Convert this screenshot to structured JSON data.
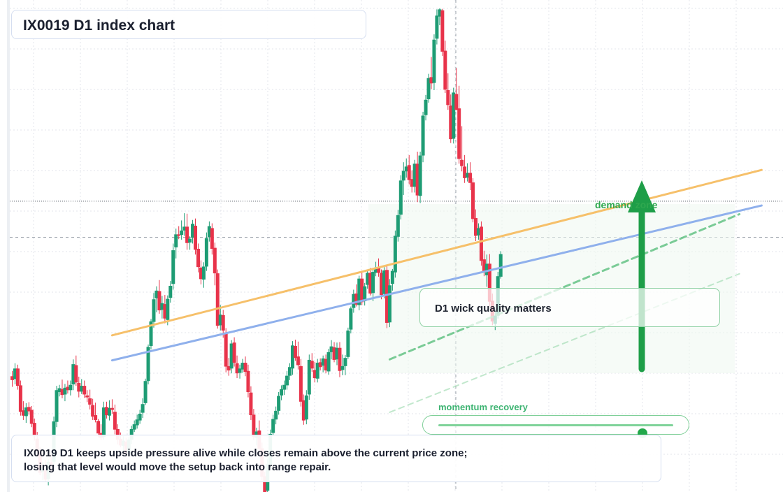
{
  "title": "IX0019 D1 index chart",
  "annotations": {
    "demand_label": "demand zone",
    "wick_note": "D1 wick quality matters",
    "momentum_label": "momentum recovery",
    "momentum_level": 0.87
  },
  "note": {
    "line1": "IX0019 D1 keeps upside pressure alive while closes remain above the current price zone;",
    "line2": "losing that level would move the setup back into range repair."
  },
  "colors": {
    "up": "#1e9c74",
    "down": "#e8334a",
    "orange_line": "#f6c06a",
    "blue_line": "#8fb0ec",
    "green_accent": "#1e9e48",
    "zone_fill": "#eef8f0"
  },
  "chart_data": {
    "type": "candlestick",
    "symbol": "IX0019",
    "timeframe": "D1",
    "grid": true,
    "price_range": [
      0,
      100
    ],
    "candles_ohlc_percent_of_range": [
      [
        23.5,
        24.6,
        21.3,
        22.7
      ],
      [
        22.9,
        26.2,
        21.8,
        25.1
      ],
      [
        25.1,
        25.9,
        20.7,
        21.5
      ],
      [
        21.6,
        22.6,
        15.3,
        16.1
      ],
      [
        16.4,
        18.3,
        14.4,
        15.3
      ],
      [
        15.2,
        17.9,
        13.8,
        17.0
      ],
      [
        17.1,
        18.1,
        15.5,
        16.2
      ],
      [
        16.5,
        17.3,
        12.9,
        13.6
      ],
      [
        13.8,
        14.7,
        10.1,
        11.0
      ],
      [
        10.5,
        11.9,
        6.8,
        7.7
      ],
      [
        7.6,
        8.8,
        2.9,
        3.4
      ],
      [
        3.6,
        5.7,
        1.9,
        4.5
      ],
      [
        4.3,
        6.1,
        1.5,
        2.0
      ],
      [
        2.1,
        6.2,
        0.8,
        5.7
      ],
      [
        5.6,
        7.2,
        3.8,
        5.1
      ],
      [
        5.7,
        15.1,
        4.8,
        14.1
      ],
      [
        14.0,
        21.5,
        12.9,
        20.6
      ],
      [
        20.2,
        21.7,
        19.3,
        21.0
      ],
      [
        20.8,
        22.8,
        18.9,
        19.6
      ],
      [
        19.7,
        21.9,
        18.3,
        21.1
      ],
      [
        21.3,
        22.6,
        19.9,
        20.6
      ],
      [
        20.6,
        22.6,
        19.5,
        21.7
      ],
      [
        21.8,
        27.0,
        20.6,
        26.0
      ],
      [
        25.8,
        27.8,
        21.5,
        22.2
      ],
      [
        22.1,
        23.4,
        19.1,
        20.3
      ],
      [
        20.3,
        22.9,
        19.8,
        21.5
      ],
      [
        21.5,
        22.6,
        19.0,
        19.7
      ],
      [
        19.5,
        20.6,
        18.1,
        19.1
      ],
      [
        18.9,
        20.7,
        16.6,
        17.6
      ],
      [
        17.5,
        18.8,
        14.4,
        15.1
      ],
      [
        15.4,
        18.0,
        13.9,
        14.4
      ],
      [
        14.2,
        14.6,
        10.8,
        11.6
      ],
      [
        11.7,
        13.5,
        10.2,
        10.7
      ],
      [
        10.9,
        18.2,
        10.3,
        17.0
      ],
      [
        17.1,
        18.2,
        14.7,
        15.4
      ],
      [
        15.3,
        18.5,
        14.3,
        16.9
      ],
      [
        16.9,
        18.7,
        15.7,
        16.5
      ],
      [
        16.1,
        17.6,
        11.4,
        12.4
      ],
      [
        12.5,
        13.5,
        9.3,
        10.3
      ],
      [
        10.5,
        11.8,
        8.7,
        9.1
      ],
      [
        9.0,
        11.0,
        7.5,
        10.1
      ],
      [
        9.9,
        10.7,
        6.7,
        7.5
      ],
      [
        7.4,
        10.8,
        6.7,
        10.3
      ],
      [
        10.3,
        13.2,
        9.4,
        12.5
      ],
      [
        12.4,
        14.3,
        11.9,
        13.5
      ],
      [
        13.3,
        15.5,
        12.6,
        14.5
      ],
      [
        14.3,
        16.5,
        13.6,
        15.7
      ],
      [
        15.9,
        18.9,
        14.8,
        17.7
      ],
      [
        17.9,
        23.0,
        17.5,
        22.5
      ],
      [
        22.5,
        30.1,
        21.8,
        29.6
      ],
      [
        29.8,
        35.4,
        29.1,
        34.9
      ],
      [
        34.8,
        40.8,
        33.6,
        39.5
      ],
      [
        39.7,
        42.2,
        36.8,
        41.3
      ],
      [
        41.2,
        43.5,
        36.5,
        37.2
      ],
      [
        37.3,
        40.2,
        35.5,
        38.7
      ],
      [
        38.5,
        40.4,
        34.5,
        35.5
      ],
      [
        35.2,
        40.3,
        34.1,
        39.6
      ],
      [
        39.8,
        43.3,
        38.8,
        42.3
      ],
      [
        42.7,
        51.1,
        41.5,
        49.7
      ],
      [
        50.3,
        54.2,
        48.0,
        53.0
      ],
      [
        53.0,
        54.7,
        52.0,
        52.7
      ],
      [
        52.9,
        55.9,
        51.9,
        53.8
      ],
      [
        53.8,
        57.4,
        52.7,
        54.6
      ],
      [
        54.6,
        57.3,
        49.8,
        51.2
      ],
      [
        51.3,
        52.6,
        49.8,
        52.1
      ],
      [
        52.3,
        56.0,
        51.1,
        55.2
      ],
      [
        54.8,
        56.3,
        48.8,
        49.8
      ],
      [
        50.0,
        51.1,
        45.1,
        46.2
      ],
      [
        46.1,
        47.6,
        42.6,
        43.7
      ],
      [
        43.6,
        47.2,
        41.9,
        46.3
      ],
      [
        46.3,
        53.4,
        45.4,
        52.2
      ],
      [
        52.4,
        55.7,
        51.5,
        54.7
      ],
      [
        54.3,
        55.3,
        48.8,
        50.0
      ],
      [
        50.2,
        51.3,
        42.4,
        44.9
      ],
      [
        44.9,
        45.7,
        33.4,
        34.0
      ],
      [
        34.1,
        38.3,
        33.0,
        36.3
      ],
      [
        36.2,
        37.3,
        31.5,
        33.0
      ],
      [
        32.6,
        33.5,
        24.3,
        25.5
      ],
      [
        25.6,
        27.3,
        23.6,
        24.7
      ],
      [
        25.1,
        31.0,
        24.1,
        30.3
      ],
      [
        30.5,
        31.6,
        25.5,
        26.3
      ],
      [
        26.2,
        27.8,
        23.1,
        24.1
      ],
      [
        24.2,
        25.9,
        23.0,
        25.1
      ],
      [
        24.9,
        27.1,
        24.2,
        26.3
      ],
      [
        26.3,
        27.6,
        23.5,
        24.4
      ],
      [
        24.6,
        25.9,
        19.1,
        20.2
      ],
      [
        20.1,
        21.4,
        14.4,
        15.4
      ],
      [
        15.5,
        16.7,
        10.2,
        10.9
      ],
      [
        10.7,
        12.8,
        9.1,
        12.0
      ],
      [
        12.2,
        14.3,
        7.3,
        8.4
      ],
      [
        8.5,
        9.7,
        1.9,
        2.6
      ],
      [
        2.7,
        3.6,
        -1.2,
        -0.6
      ],
      [
        -0.3,
        6.3,
        -1.1,
        5.2
      ],
      [
        5.0,
        12.4,
        4.0,
        11.5
      ],
      [
        11.7,
        15.5,
        11.1,
        14.6
      ],
      [
        14.5,
        17.2,
        13.5,
        16.3
      ],
      [
        16.3,
        20.2,
        15.5,
        19.4
      ],
      [
        19.5,
        21.6,
        18.5,
        20.8
      ],
      [
        20.7,
        22.6,
        19.6,
        21.7
      ],
      [
        21.6,
        24.6,
        20.7,
        23.6
      ],
      [
        23.6,
        26.2,
        22.7,
        25.4
      ],
      [
        25.1,
        30.8,
        23.8,
        29.9
      ],
      [
        29.8,
        31.1,
        26.7,
        27.3
      ],
      [
        27.6,
        30.7,
        24.9,
        25.8
      ],
      [
        25.6,
        27.1,
        17.2,
        18.2
      ],
      [
        18.5,
        19.7,
        13.4,
        14.3
      ],
      [
        14.5,
        20.6,
        13.5,
        19.5
      ],
      [
        19.7,
        28.0,
        18.6,
        26.9
      ],
      [
        26.7,
        28.3,
        24.4,
        25.1
      ],
      [
        24.8,
        26.5,
        22.2,
        23.1
      ],
      [
        23.0,
        27.1,
        22.2,
        26.3
      ],
      [
        26.4,
        27.2,
        24.7,
        25.4
      ],
      [
        25.7,
        27.8,
        24.3,
        27.2
      ],
      [
        27.1,
        28.0,
        24.1,
        24.7
      ],
      [
        24.5,
        29.2,
        23.8,
        28.5
      ],
      [
        28.5,
        31.0,
        27.0,
        29.7
      ],
      [
        29.5,
        30.6,
        26.4,
        26.9
      ],
      [
        27.0,
        30.5,
        25.8,
        29.4
      ],
      [
        29.4,
        30.6,
        23.3,
        24.6
      ],
      [
        24.8,
        28.0,
        23.7,
        25.6
      ],
      [
        25.6,
        27.9,
        23.7,
        27.3
      ],
      [
        27.5,
        33.6,
        27.1,
        33.0
      ],
      [
        33.2,
        38.0,
        32.4,
        37.6
      ],
      [
        37.7,
        41.5,
        36.7,
        40.6
      ],
      [
        40.7,
        42.6,
        38.0,
        38.4
      ],
      [
        38.3,
        44.4,
        37.2,
        43.8
      ],
      [
        43.8,
        45.2,
        38.3,
        38.9
      ],
      [
        39.1,
        42.9,
        38.2,
        42.2
      ],
      [
        42.5,
        45.6,
        41.7,
        45.0
      ],
      [
        45.0,
        46.0,
        40.3,
        40.7
      ],
      [
        40.8,
        45.9,
        39.1,
        45.2
      ],
      [
        45.0,
        47.3,
        44.3,
        46.1
      ],
      [
        46.2,
        48.0,
        44.2,
        45.0
      ],
      [
        45.0,
        45.7,
        39.5,
        40.4
      ],
      [
        40.6,
        46.2,
        39.7,
        45.5
      ],
      [
        45.6,
        46.5,
        33.5,
        34.6
      ],
      [
        34.7,
        43.7,
        33.7,
        42.4
      ],
      [
        42.7,
        45.8,
        41.3,
        45.4
      ],
      [
        45.1,
        53.8,
        44.0,
        52.7
      ],
      [
        52.5,
        58.1,
        51.5,
        57.0
      ],
      [
        57.1,
        65.3,
        56.1,
        64.2
      ],
      [
        64.2,
        68.0,
        61.2,
        66.2
      ],
      [
        66.1,
        68.8,
        64.8,
        67.1
      ],
      [
        67.4,
        69.5,
        63.4,
        64.3
      ],
      [
        64.5,
        66.3,
        61.7,
        62.9
      ],
      [
        62.9,
        68.5,
        61.7,
        67.7
      ],
      [
        67.7,
        70.2,
        59.7,
        61.1
      ],
      [
        61.0,
        70.2,
        59.5,
        69.4
      ],
      [
        69.4,
        78.5,
        68.0,
        77.7
      ],
      [
        77.8,
        82.0,
        76.7,
        81.0
      ],
      [
        81.1,
        86.4,
        80.4,
        85.5
      ],
      [
        85.7,
        89.9,
        83.2,
        84.4
      ],
      [
        84.5,
        94.6,
        83.0,
        93.5
      ],
      [
        93.7,
        99.8,
        92.5,
        98.5
      ],
      [
        98.3,
        100.0,
        96.5,
        99.8
      ],
      [
        99.6,
        99.9,
        90.1,
        91.0
      ],
      [
        91.2,
        93.3,
        82.4,
        83.1
      ],
      [
        83.0,
        86.5,
        78.9,
        79.9
      ],
      [
        79.8,
        82.1,
        72.0,
        72.8
      ],
      [
        72.9,
        83.5,
        71.9,
        82.5
      ],
      [
        82.2,
        87.6,
        78.8,
        78.9
      ],
      [
        79.2,
        83.9,
        67.7,
        68.7
      ],
      [
        68.5,
        75.5,
        66.1,
        67.2
      ],
      [
        67.1,
        69.5,
        63.7,
        64.7
      ],
      [
        64.8,
        67.8,
        64.0,
        65.8
      ],
      [
        65.8,
        68.0,
        62.2,
        63.7
      ],
      [
        63.8,
        64.7,
        55.5,
        56.2
      ],
      [
        56.4,
        58.2,
        51.6,
        52.7
      ],
      [
        52.8,
        55.3,
        51.9,
        54.3
      ],
      [
        54.6,
        55.7,
        46.5,
        47.5
      ],
      [
        47.8,
        49.6,
        44.3,
        45.0
      ],
      [
        44.5,
        48.8,
        42.1,
        46.9
      ],
      [
        46.9,
        48.9,
        38.1,
        39.0
      ],
      [
        39.2,
        40.7,
        34.1,
        34.9
      ],
      [
        34.4,
        37.4,
        33.1,
        36.1
      ],
      [
        36.1,
        45.2,
        35.5,
        44.3
      ],
      [
        44.2,
        49.5,
        43.8,
        48.9
      ]
    ],
    "trendlines": [
      {
        "color": "orange",
        "from_candle": 36,
        "from_price": 32.0,
        "to_candle": 270,
        "to_price": 66.4
      },
      {
        "color": "blue",
        "from_candle": 36,
        "from_price": 26.8,
        "to_candle": 270,
        "to_price": 59.0
      },
      {
        "color": "green-dashed",
        "from_candle": 136,
        "from_price": 27.0,
        "to_candle": 262,
        "to_price": 57.2
      },
      {
        "color": "green-dashed-light",
        "from_candle": 136,
        "from_price": 16.0,
        "to_candle": 262,
        "to_price": 44.8
      }
    ],
    "reference_prices": [
      59.9,
      52.4
    ]
  }
}
